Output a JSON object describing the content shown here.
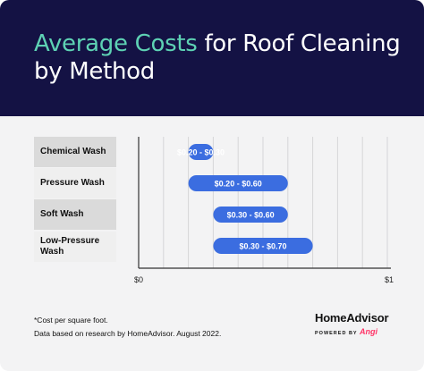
{
  "header": {
    "title_accent": "Average Costs",
    "title_rest": " for Roof Cleaning by Method"
  },
  "chart_data": {
    "type": "bar",
    "subtype": "floating-range-horizontal",
    "categories": [
      "Chemical Wash",
      "Pressure Wash",
      "Soft Wash",
      "Low-Pressure Wash"
    ],
    "ranges": [
      [
        0.2,
        0.3
      ],
      [
        0.2,
        0.6
      ],
      [
        0.3,
        0.6
      ],
      [
        0.3,
        0.7
      ]
    ],
    "bar_labels": [
      "$0.20 - $0.30",
      "$0.20 - $0.60",
      "$0.30 - $0.60",
      "$0.30 - $0.70"
    ],
    "xlim": [
      0,
      1
    ],
    "x_tick_labels": [
      "$0",
      "$1"
    ],
    "grid": true,
    "bar_color": "#3b6de0"
  },
  "footnotes": {
    "line1": "*Cost per square foot.",
    "line2": "Data based on research by HomeAdvisor. August 2022."
  },
  "brand": {
    "name": "HomeAdvisor",
    "powered_by": "POWERED BY",
    "angi": "Angi"
  },
  "colors": {
    "header_bg": "#141244",
    "title_accent": "#5ed2b4",
    "bar": "#3b6de0"
  }
}
